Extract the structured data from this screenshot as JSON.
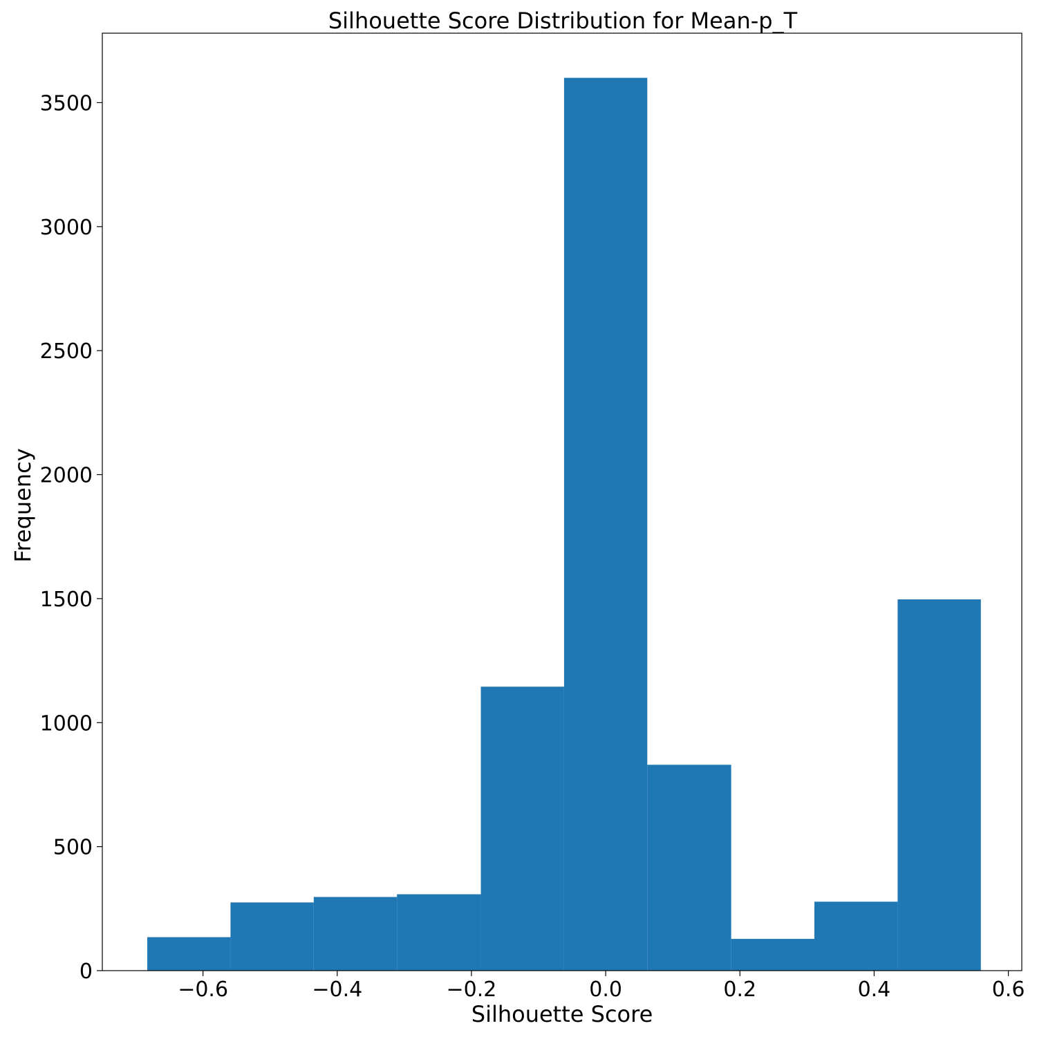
{
  "chart_data": {
    "type": "bar",
    "title": "Silhouette Score Distribution for Mean-p_T",
    "xlabel": "Silhouette Score",
    "ylabel": "Frequency",
    "xlim": [
      -0.75,
      0.62
    ],
    "ylim": [
      0,
      3780
    ],
    "grid": false,
    "bar_color": "#1f77b4",
    "bins": [
      {
        "x0": -0.683,
        "x1": -0.559,
        "value": 135
      },
      {
        "x0": -0.559,
        "x1": -0.435,
        "value": 275
      },
      {
        "x0": -0.435,
        "x1": -0.311,
        "value": 297
      },
      {
        "x0": -0.311,
        "x1": -0.186,
        "value": 308
      },
      {
        "x0": -0.186,
        "x1": -0.062,
        "value": 1145
      },
      {
        "x0": -0.062,
        "x1": 0.062,
        "value": 3600
      },
      {
        "x0": 0.062,
        "x1": 0.187,
        "value": 830
      },
      {
        "x0": 0.187,
        "x1": 0.311,
        "value": 128
      },
      {
        "x0": 0.311,
        "x1": 0.435,
        "value": 278
      },
      {
        "x0": 0.435,
        "x1": 0.559,
        "value": 1497
      }
    ],
    "xticks": [
      {
        "value": -0.6,
        "label": "−0.6"
      },
      {
        "value": -0.4,
        "label": "−0.4"
      },
      {
        "value": -0.2,
        "label": "−0.2"
      },
      {
        "value": 0.0,
        "label": "0.0"
      },
      {
        "value": 0.2,
        "label": "0.2"
      },
      {
        "value": 0.4,
        "label": "0.4"
      },
      {
        "value": 0.6,
        "label": "0.6"
      }
    ],
    "yticks": [
      {
        "value": 0,
        "label": "0"
      },
      {
        "value": 500,
        "label": "500"
      },
      {
        "value": 1000,
        "label": "1000"
      },
      {
        "value": 1500,
        "label": "1500"
      },
      {
        "value": 2000,
        "label": "2000"
      },
      {
        "value": 2500,
        "label": "2500"
      },
      {
        "value": 3000,
        "label": "3000"
      },
      {
        "value": 3500,
        "label": "3500"
      }
    ]
  }
}
